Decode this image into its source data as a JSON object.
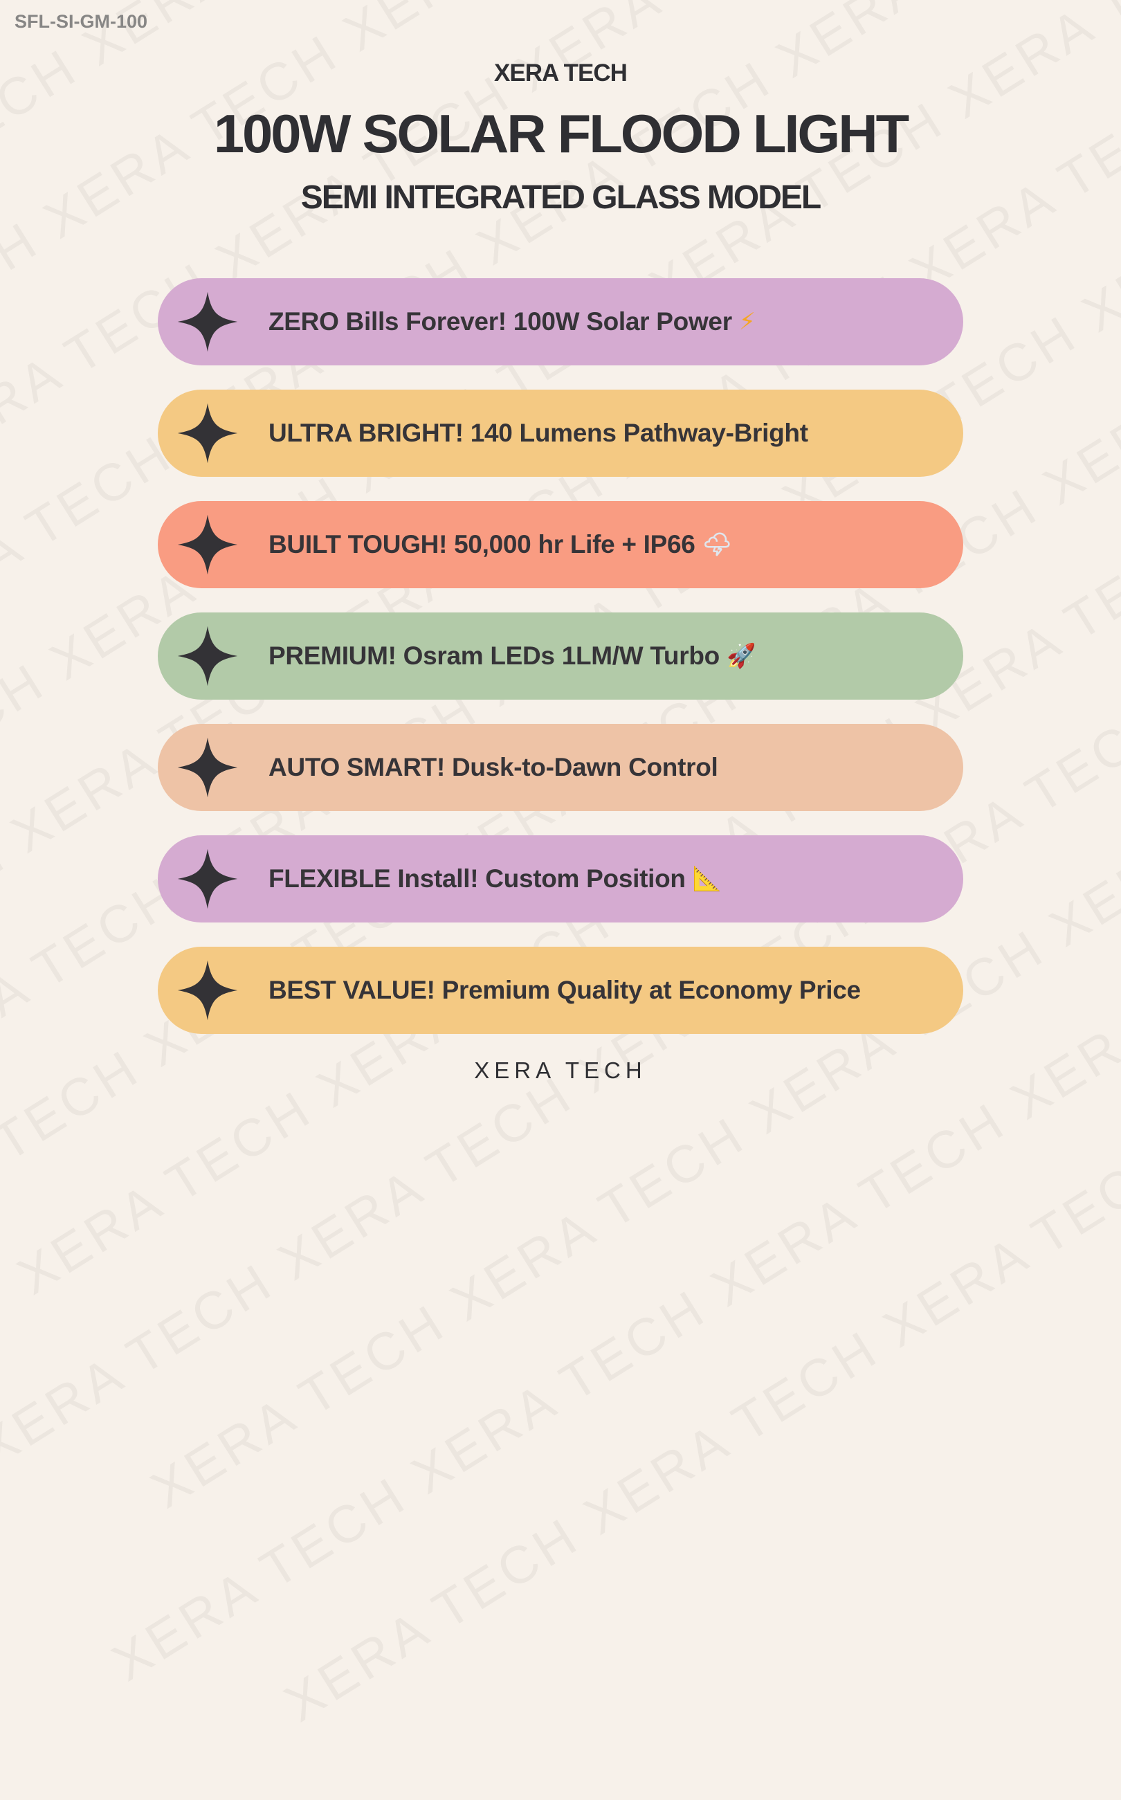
{
  "sku": "SFL-SI-GM-100",
  "header": {
    "brand": "XERA TECH",
    "title": "100W SOLAR FLOOD LIGHT",
    "subtitle": "SEMI INTEGRATED  GLASS MODEL"
  },
  "watermark_text": "XERA TECH XERA TECH XERA TECH XERA TECH XERA TECH XERA TECH XERA TECH",
  "features": [
    {
      "text": "ZERO Bills Forever! 100W Solar Power",
      "emoji": "⚡",
      "emoji_name": "lightning-icon",
      "color": "#d5abd1",
      "emoji_color": "#f5a623"
    },
    {
      "text": "ULTRA BRIGHT! 140 Lumens Pathway-Bright",
      "emoji": "",
      "emoji_name": "",
      "color": "#f4c983",
      "emoji_color": ""
    },
    {
      "text": "BUILT TOUGH! 50,000 hr Life + IP66",
      "emoji": "🌩",
      "emoji_name": "storm-cloud-icon",
      "color": "#f99c82",
      "emoji_color": "#dfe6ee"
    },
    {
      "text": "PREMIUM! Osram LEDs 1LM/W Turbo",
      "emoji": "🚀",
      "emoji_name": "rocket-icon",
      "color": "#b2caa8",
      "emoji_color": "#5aa0e0"
    },
    {
      "text": "AUTO SMART! Dusk-to-Dawn Control",
      "emoji": "",
      "emoji_name": "",
      "color": "#eec3a6",
      "emoji_color": ""
    },
    {
      "text": "FLEXIBLE Install! Custom Position",
      "emoji": "📐",
      "emoji_name": "triangle-ruler-icon",
      "color": "#d5abd1",
      "emoji_color": "#f7c948"
    },
    {
      "text": "BEST VALUE! Premium Quality at Economy Price",
      "emoji": "",
      "emoji_name": "",
      "color": "#f4c983",
      "emoji_color": ""
    }
  ],
  "footer": "XERA TECH",
  "colors": {
    "background": "#f7f1ea",
    "text": "#333236",
    "star": "#333236",
    "sku": "#878685"
  }
}
